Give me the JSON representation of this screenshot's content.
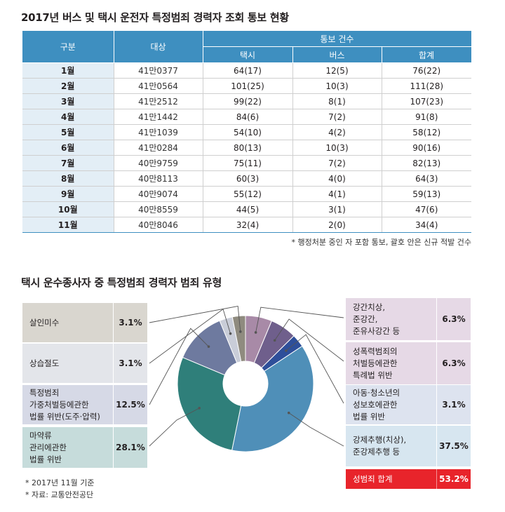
{
  "table_title": "2017년 버스 및 택시 운전자 특정범죄 경력자 조회 통보 현황",
  "table": {
    "headers": {
      "category": "구분",
      "target": "대상",
      "notice_count": "통보 건수",
      "taxi": "택시",
      "bus": "버스",
      "total": "합계"
    },
    "rows": [
      {
        "month": "1월",
        "target": "41만0377",
        "taxi": "64(17)",
        "bus": "12(5)",
        "total": "76(22)"
      },
      {
        "month": "2월",
        "target": "41만0564",
        "taxi": "101(25)",
        "bus": "10(3)",
        "total": "111(28)"
      },
      {
        "month": "3월",
        "target": "41만2512",
        "taxi": "99(22)",
        "bus": "8(1)",
        "total": "107(23)"
      },
      {
        "month": "4월",
        "target": "41만1442",
        "taxi": "84(6)",
        "bus": "7(2)",
        "total": "91(8)"
      },
      {
        "month": "5월",
        "target": "41만1039",
        "taxi": "54(10)",
        "bus": "4(2)",
        "total": "58(12)"
      },
      {
        "month": "6월",
        "target": "41만0284",
        "taxi": "80(13)",
        "bus": "10(3)",
        "total": "90(16)"
      },
      {
        "month": "7월",
        "target": "40만9759",
        "taxi": "75(11)",
        "bus": "7(2)",
        "total": "82(13)"
      },
      {
        "month": "8월",
        "target": "40만8113",
        "taxi": "60(3)",
        "bus": "4(0)",
        "total": "64(3)"
      },
      {
        "month": "9월",
        "target": "40만9074",
        "taxi": "55(12)",
        "bus": "4(1)",
        "total": "59(13)"
      },
      {
        "month": "10월",
        "target": "40만8559",
        "taxi": "44(5)",
        "bus": "3(1)",
        "total": "47(6)"
      },
      {
        "month": "11월",
        "target": "40만8046",
        "taxi": "32(4)",
        "bus": "2(0)",
        "total": "34(4)"
      }
    ],
    "note": "* 행정처분 중인 자 포함 통보, 괄호 안은 신규 적발 건수"
  },
  "chart_title": "택시 운수종사자 중 특정범죄 경력자 범죄 유형",
  "chart_data": {
    "type": "pie",
    "title": "택시 운수종사자 중 특정범죄 경력자 범죄 유형",
    "slices": [
      {
        "label": "강간치상, 준강간, 준유사강간 등",
        "lines": [
          "강간치상,",
          "준강간,",
          "준유사강간 등"
        ],
        "value": 6.3,
        "text": "6.3%",
        "color": "#a88aa7",
        "box_bg": "#e6d9e6",
        "value_bg": "#e6d9e6"
      },
      {
        "label": "성폭력범죄의 처벌등에관한 특례법 위반",
        "lines": [
          "성폭력범죄의",
          "처벌등에관한",
          "특례법 위반"
        ],
        "value": 6.3,
        "text": "6.3%",
        "color": "#6f5f8c",
        "box_bg": "#e6d9e6",
        "value_bg": "#e6d9e6"
      },
      {
        "label": "아동·청소년의 성보호에관한 법률 위반",
        "lines": [
          "아동·청소년의",
          "성보호에관한",
          "법률 위반"
        ],
        "value": 3.1,
        "text": "3.1%",
        "color": "#2e4f9a",
        "box_bg": "#dde3ef",
        "value_bg": "#dde3ef"
      },
      {
        "label": "강제추행(치상), 준강제추행 등",
        "lines": [
          "강제추행(치상),",
          "준강제추행 등"
        ],
        "value": 37.5,
        "text": "37.5%",
        "color": "#4f8fb8",
        "box_bg": "#d7e6f0",
        "value_bg": "#d7e6f0"
      },
      {
        "label": "마약류 관리에관한 법률 위반",
        "lines": [
          "마약류",
          "관리에관한",
          "법률 위반"
        ],
        "value": 28.1,
        "text": "28.1%",
        "color": "#2f7f7a",
        "box_bg": "#c6dcdb",
        "value_bg": "#c6dcdb"
      },
      {
        "label": "특정범죄 가중처벌등에관한 법률 위반(도주·압력)",
        "lines": [
          "특정범죄",
          "가중처벌등에관한",
          "법률 위반(도주·압력)"
        ],
        "value": 12.5,
        "text": "12.5%",
        "color": "#6e7a9f",
        "box_bg": "#d6d9e6",
        "value_bg": "#d6d9e6"
      },
      {
        "label": "상습절도",
        "lines": [
          "상습절도"
        ],
        "value": 3.1,
        "text": "3.1%",
        "color": "#c9cdd8",
        "box_bg": "#e3e5ea",
        "value_bg": "#e3e5ea"
      },
      {
        "label": "살인미수",
        "lines": [
          "살인미수"
        ],
        "value": 3.1,
        "text": "3.1%",
        "color": "#8f8b7f",
        "box_bg": "#d9d6cf",
        "value_bg": "#d9d6cf"
      }
    ],
    "sum_label": "성범죄 합계",
    "sum_value": "53.2%",
    "sum_color": "#e8242b"
  },
  "footnotes": [
    "* 2017년 11월 기준",
    "* 자료: 교통안전공단"
  ]
}
